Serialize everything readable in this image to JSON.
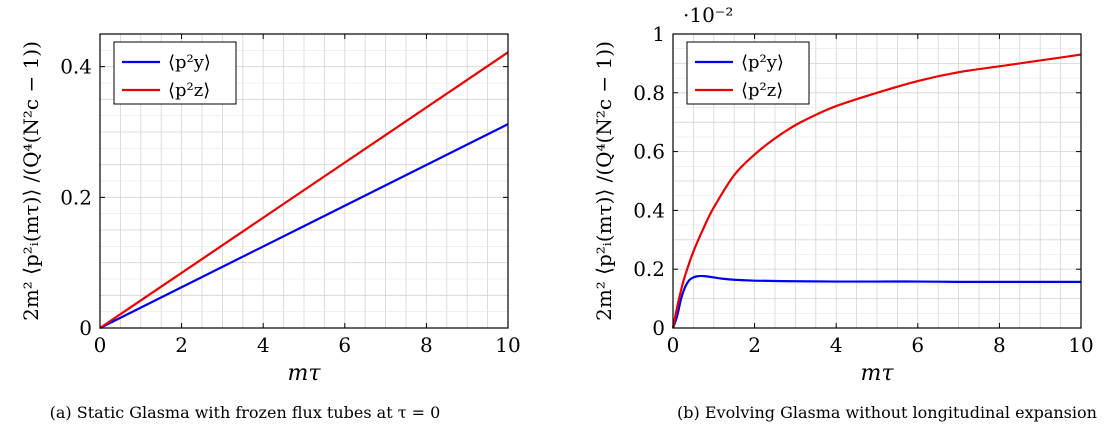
{
  "chart_data": [
    {
      "type": "line",
      "caption": "(a) Static Glasma with frozen flux tubes at τ = 0",
      "xlabel": "mτ",
      "ylabel": "2m² ⟨p²ᵢ(mτ)⟩ /(Q⁴(N²c − 1))",
      "xlim": [
        0,
        10
      ],
      "ylim": [
        0,
        0.45
      ],
      "xticks": [
        0,
        2,
        4,
        6,
        8,
        10
      ],
      "yticks": [
        0,
        0.2,
        0.4
      ],
      "xtick_labels": [
        "0",
        "2",
        "4",
        "6",
        "8",
        "10"
      ],
      "ytick_labels": [
        "0",
        "0.2",
        "0.4"
      ],
      "y_multiplier": "",
      "grid": true,
      "legend": "top-left",
      "series": [
        {
          "name": "⟨p²y⟩",
          "color": "#0000ee",
          "x": [
            0,
            10
          ],
          "y": [
            0,
            0.312
          ]
        },
        {
          "name": "⟨p²z⟩",
          "color": "#ee0000",
          "x": [
            0,
            10
          ],
          "y": [
            0,
            0.422
          ]
        }
      ]
    },
    {
      "type": "line",
      "caption": "(b) Evolving Glasma without longitudinal expansion",
      "xlabel": "mτ",
      "ylabel": "2m² ⟨p²ᵢ(mτ)⟩ /(Q⁴(N²c − 1))",
      "xlim": [
        0,
        10
      ],
      "ylim": [
        0,
        1
      ],
      "xticks": [
        0,
        2,
        4,
        6,
        8,
        10
      ],
      "yticks": [
        0,
        0.2,
        0.4,
        0.6,
        0.8,
        1
      ],
      "xtick_labels": [
        "0",
        "2",
        "4",
        "6",
        "8",
        "10"
      ],
      "ytick_labels": [
        "0",
        "0.2",
        "0.4",
        "0.6",
        "0.8",
        "1"
      ],
      "y_multiplier": "·10⁻²",
      "grid": true,
      "legend": "top-left",
      "series": [
        {
          "name": "⟨p²y⟩",
          "color": "#0000ee",
          "x": [
            0,
            0.1,
            0.2,
            0.3,
            0.4,
            0.5,
            0.6,
            0.7,
            0.8,
            1.0,
            1.2,
            1.5,
            2,
            3,
            4,
            5,
            6,
            7,
            8,
            9,
            10
          ],
          "y": [
            0,
            0.04,
            0.1,
            0.14,
            0.163,
            0.172,
            0.176,
            0.177,
            0.176,
            0.172,
            0.168,
            0.164,
            0.161,
            0.159,
            0.158,
            0.158,
            0.158,
            0.157,
            0.157,
            0.157,
            0.157
          ]
        },
        {
          "name": "⟨p²z⟩",
          "color": "#ee0000",
          "x": [
            0,
            0.1,
            0.2,
            0.3,
            0.5,
            0.75,
            1,
            1.5,
            2,
            2.5,
            3,
            3.5,
            4,
            5,
            6,
            7,
            8,
            9,
            10
          ],
          "y": [
            0,
            0.07,
            0.13,
            0.18,
            0.26,
            0.34,
            0.41,
            0.52,
            0.59,
            0.645,
            0.69,
            0.725,
            0.755,
            0.8,
            0.84,
            0.87,
            0.89,
            0.91,
            0.93
          ]
        }
      ]
    }
  ]
}
